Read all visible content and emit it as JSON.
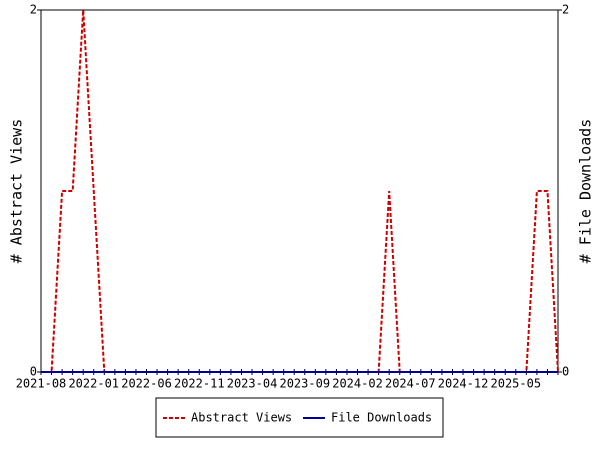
{
  "chart_data": {
    "type": "line",
    "categories": [
      "2021-08",
      null,
      null,
      null,
      null,
      "2022-01",
      null,
      null,
      null,
      null,
      "2022-06",
      null,
      null,
      null,
      null,
      "2022-11",
      null,
      null,
      null,
      null,
      "2023-04",
      null,
      null,
      null,
      null,
      "2023-09",
      null,
      null,
      null,
      null,
      "2024-02",
      null,
      null,
      null,
      null,
      "2024-07",
      null,
      null,
      null,
      null,
      "2024-12",
      null,
      null,
      null,
      null,
      "2025-05",
      null,
      null,
      null,
      null
    ],
    "series": [
      {
        "name": "Abstract Views",
        "color": "#cc0000",
        "dash": true,
        "axis": "y",
        "values": [
          0,
          0,
          1,
          1,
          2,
          1,
          0,
          0,
          0,
          0,
          0,
          0,
          0,
          0,
          0,
          0,
          0,
          0,
          0,
          0,
          0,
          0,
          0,
          0,
          0,
          0,
          0,
          0,
          0,
          0,
          0,
          0,
          0,
          1,
          0,
          0,
          0,
          0,
          0,
          0,
          0,
          0,
          0,
          0,
          0,
          0,
          0,
          1,
          1,
          0
        ]
      },
      {
        "name": "File Downloads",
        "color": "#000099",
        "dash": false,
        "axis": "y2",
        "values": [
          0,
          0,
          0,
          0,
          0,
          0,
          0,
          0,
          0,
          0,
          0,
          0,
          0,
          0,
          0,
          0,
          0,
          0,
          0,
          0,
          0,
          0,
          0,
          0,
          0,
          0,
          0,
          0,
          0,
          0,
          0,
          0,
          0,
          0,
          0,
          0,
          0,
          0,
          0,
          0,
          0,
          0,
          0,
          0,
          0,
          0,
          0,
          0,
          0,
          0
        ]
      }
    ],
    "ylabel": "# Abstract Views",
    "y2label": "# File Downloads",
    "ylim": [
      0,
      2
    ],
    "yticks": [
      0,
      2
    ],
    "y2lim": [
      0,
      2
    ],
    "y2ticks": [
      0,
      2
    ],
    "legend": "bottom"
  }
}
